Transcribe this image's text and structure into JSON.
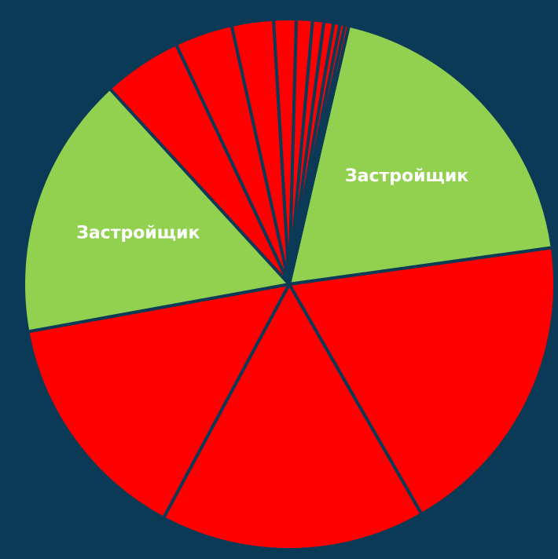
{
  "chart_data": {
    "type": "pie",
    "colors": {
      "background": "#0b3a57",
      "highlight": "#92d050",
      "other": "#ff0000"
    },
    "slices": [
      {
        "label": "Застройщик",
        "value": 19.6,
        "color": "#92d050"
      },
      {
        "label": "",
        "value": 19.3,
        "color": "#ff0000"
      },
      {
        "label": "",
        "value": 16.5,
        "color": "#ff0000"
      },
      {
        "label": "",
        "value": 14.6,
        "color": "#ff0000"
      },
      {
        "label": "Застройщик",
        "value": 16.4,
        "color": "#92d050"
      },
      {
        "label": "",
        "value": 4.9,
        "color": "#ff0000"
      },
      {
        "label": "",
        "value": 3.6,
        "color": "#ff0000"
      },
      {
        "label": "",
        "value": 2.6,
        "color": "#ff0000"
      },
      {
        "label": "",
        "value": 1.4,
        "color": "#ff0000"
      },
      {
        "label": "",
        "value": 1.0,
        "color": "#ff0000"
      },
      {
        "label": "",
        "value": 0.7,
        "color": "#ff0000"
      },
      {
        "label": "",
        "value": 0.6,
        "color": "#ff0000"
      },
      {
        "label": "",
        "value": 0.4,
        "color": "#ff0000"
      },
      {
        "label": "",
        "value": 0.3,
        "color": "#ff0000"
      },
      {
        "label": "",
        "value": 0.25,
        "color": "#ff0000"
      }
    ]
  }
}
